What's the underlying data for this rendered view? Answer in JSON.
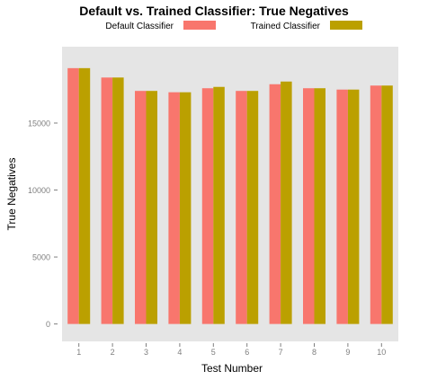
{
  "chart_data": {
    "type": "bar",
    "title": "Default vs. Trained Classifier: True Negatives",
    "xlabel": "Test Number",
    "ylabel": "True Negatives",
    "categories": [
      "1",
      "2",
      "3",
      "4",
      "5",
      "6",
      "7",
      "8",
      "9",
      "10"
    ],
    "series": [
      {
        "name": "Default Classifier",
        "color": "#f8766d",
        "values": [
          19100,
          18400,
          17400,
          17300,
          17600,
          17400,
          17900,
          17600,
          17500,
          17800
        ]
      },
      {
        "name": "Trained Classifier",
        "color": "#bba000",
        "values": [
          19100,
          18400,
          17400,
          17300,
          17700,
          17400,
          18100,
          17600,
          17500,
          17800
        ]
      }
    ],
    "yticks": [
      0,
      5000,
      10000,
      15000
    ],
    "ylim": [
      -1300,
      20700
    ],
    "legend_position": "top",
    "grid": false,
    "panel_background": "#e5e5e5"
  }
}
